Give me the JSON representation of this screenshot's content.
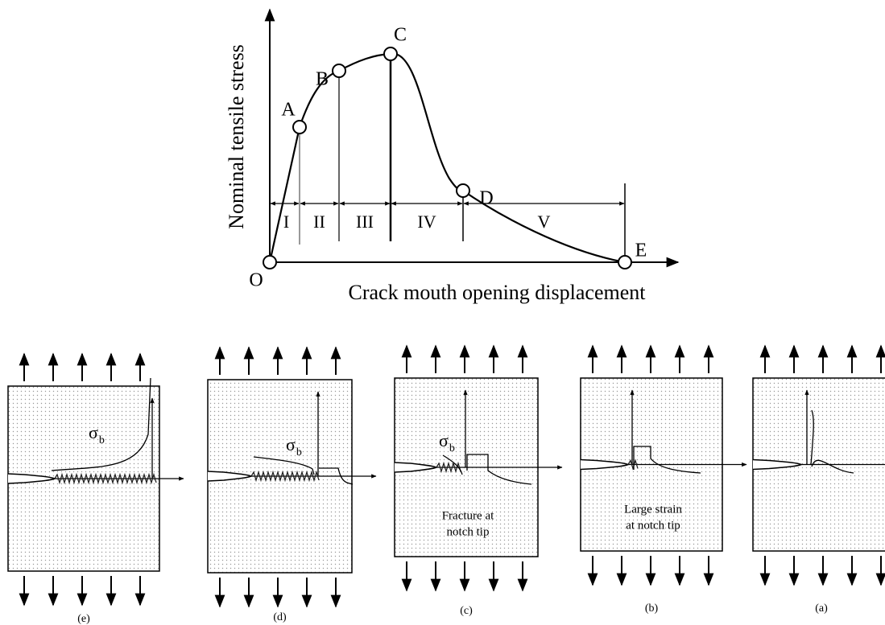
{
  "curve": {
    "y_label": "Nominal tensile stress",
    "x_label": "Crack mouth opening displacement",
    "points": [
      "O",
      "A",
      "B",
      "C",
      "D",
      "E"
    ],
    "stages": [
      "I",
      "II",
      "III",
      "IV",
      "V"
    ]
  },
  "panels": [
    {
      "caption": "(e)",
      "sigma": "σ",
      "sigma_sub": "b"
    },
    {
      "caption": "(d)",
      "sigma": "σ",
      "sigma_sub": "b"
    },
    {
      "caption": "(c)",
      "sigma": "σ",
      "sigma_sub": "b",
      "note": [
        "Fracture at",
        "notch tip"
      ]
    },
    {
      "caption": "(b)",
      "note": [
        "Large strain",
        "at notch tip"
      ]
    },
    {
      "caption": "(a)"
    }
  ]
}
